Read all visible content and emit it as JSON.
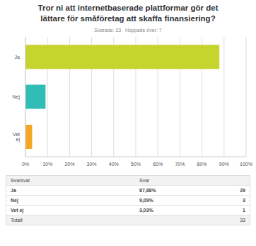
{
  "chart_data": {
    "type": "bar",
    "orientation": "horizontal",
    "title": "Tror ni att internetbaserade plattformar gör det lättare för småföretag att skaffa finansiering?",
    "subtitle": "Svarade: 33   Hoppade över: 7",
    "categories": [
      "Ja",
      "Nej",
      "Vet ej"
    ],
    "values": [
      87.88,
      9.09,
      3.03
    ],
    "colors": [
      "#c6d42e",
      "#2fbdb5",
      "#f6a623"
    ],
    "xlim": [
      0,
      100
    ],
    "xticks": [
      {
        "value": 0,
        "label": "0%"
      },
      {
        "value": 10,
        "label": "10%"
      },
      {
        "value": 20,
        "label": "20%"
      },
      {
        "value": 30,
        "label": "30%"
      },
      {
        "value": 40,
        "label": "40%"
      },
      {
        "value": 50,
        "label": "50%"
      },
      {
        "value": 60,
        "label": "60%"
      },
      {
        "value": 70,
        "label": "70%"
      },
      {
        "value": 80,
        "label": "80%"
      },
      {
        "value": 90,
        "label": "90%"
      },
      {
        "value": 100,
        "label": "100%"
      }
    ],
    "grid": true
  },
  "table": {
    "header": [
      "Svarsval",
      "Svar"
    ],
    "rows": [
      [
        "Ja",
        "87,88%",
        "29"
      ],
      [
        "Nej",
        "9,09%",
        "3"
      ],
      [
        "Vet ej",
        "3,03%",
        "1"
      ]
    ],
    "total": {
      "label": "Totalt",
      "count": "33"
    }
  }
}
